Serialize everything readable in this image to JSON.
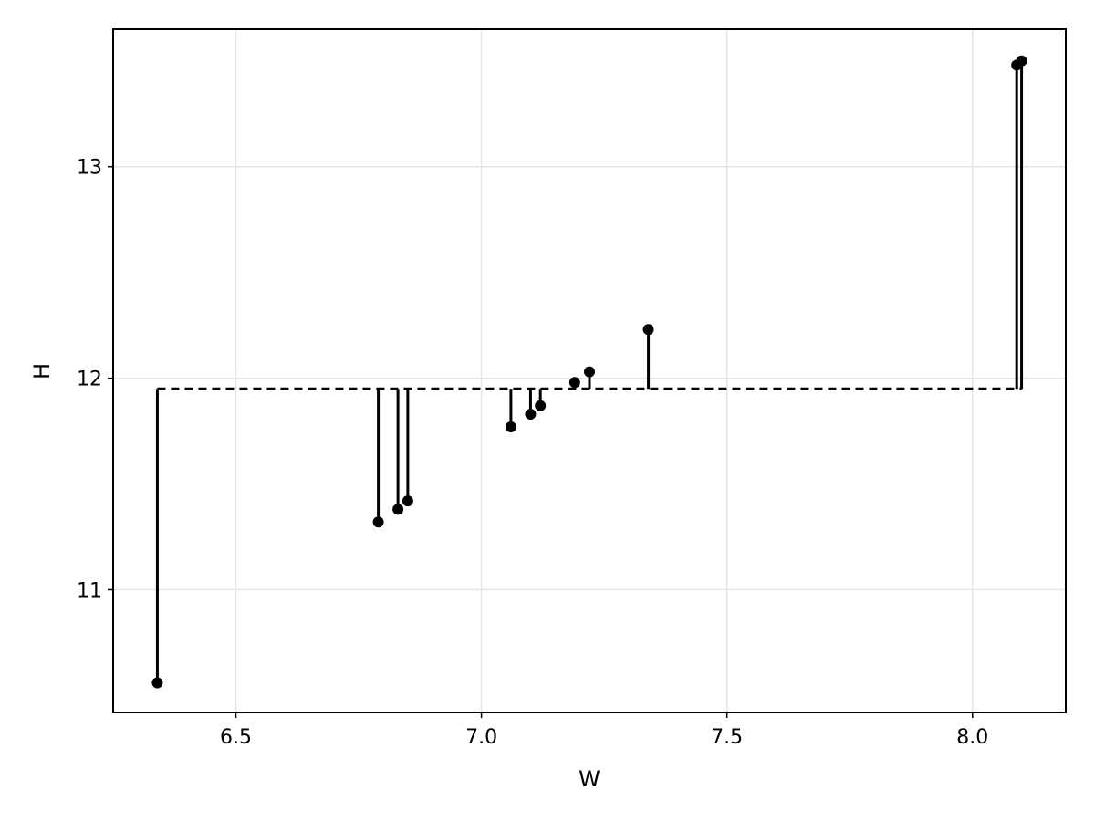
{
  "chart_data": {
    "type": "stem",
    "xlabel": "W",
    "ylabel": "H",
    "xlim": [
      6.25,
      8.19
    ],
    "ylim": [
      10.42,
      13.65
    ],
    "xticks": [
      6.5,
      7.0,
      7.5,
      8.0
    ],
    "xtick_labels": [
      "6.5",
      "7.0",
      "7.5",
      "8.0"
    ],
    "yticks": [
      11,
      12,
      13
    ],
    "ytick_labels": [
      "11",
      "12",
      "13"
    ],
    "grid": true,
    "baseline": 11.95,
    "baseline_style": "dashed",
    "points": [
      {
        "x": 6.34,
        "y": 10.56
      },
      {
        "x": 6.79,
        "y": 11.32
      },
      {
        "x": 6.83,
        "y": 11.38
      },
      {
        "x": 6.85,
        "y": 11.42
      },
      {
        "x": 7.06,
        "y": 11.77
      },
      {
        "x": 7.1,
        "y": 11.83
      },
      {
        "x": 7.12,
        "y": 11.87
      },
      {
        "x": 7.19,
        "y": 11.98
      },
      {
        "x": 7.22,
        "y": 12.03
      },
      {
        "x": 7.34,
        "y": 12.23
      },
      {
        "x": 8.09,
        "y": 13.48
      },
      {
        "x": 8.1,
        "y": 13.5
      }
    ]
  }
}
